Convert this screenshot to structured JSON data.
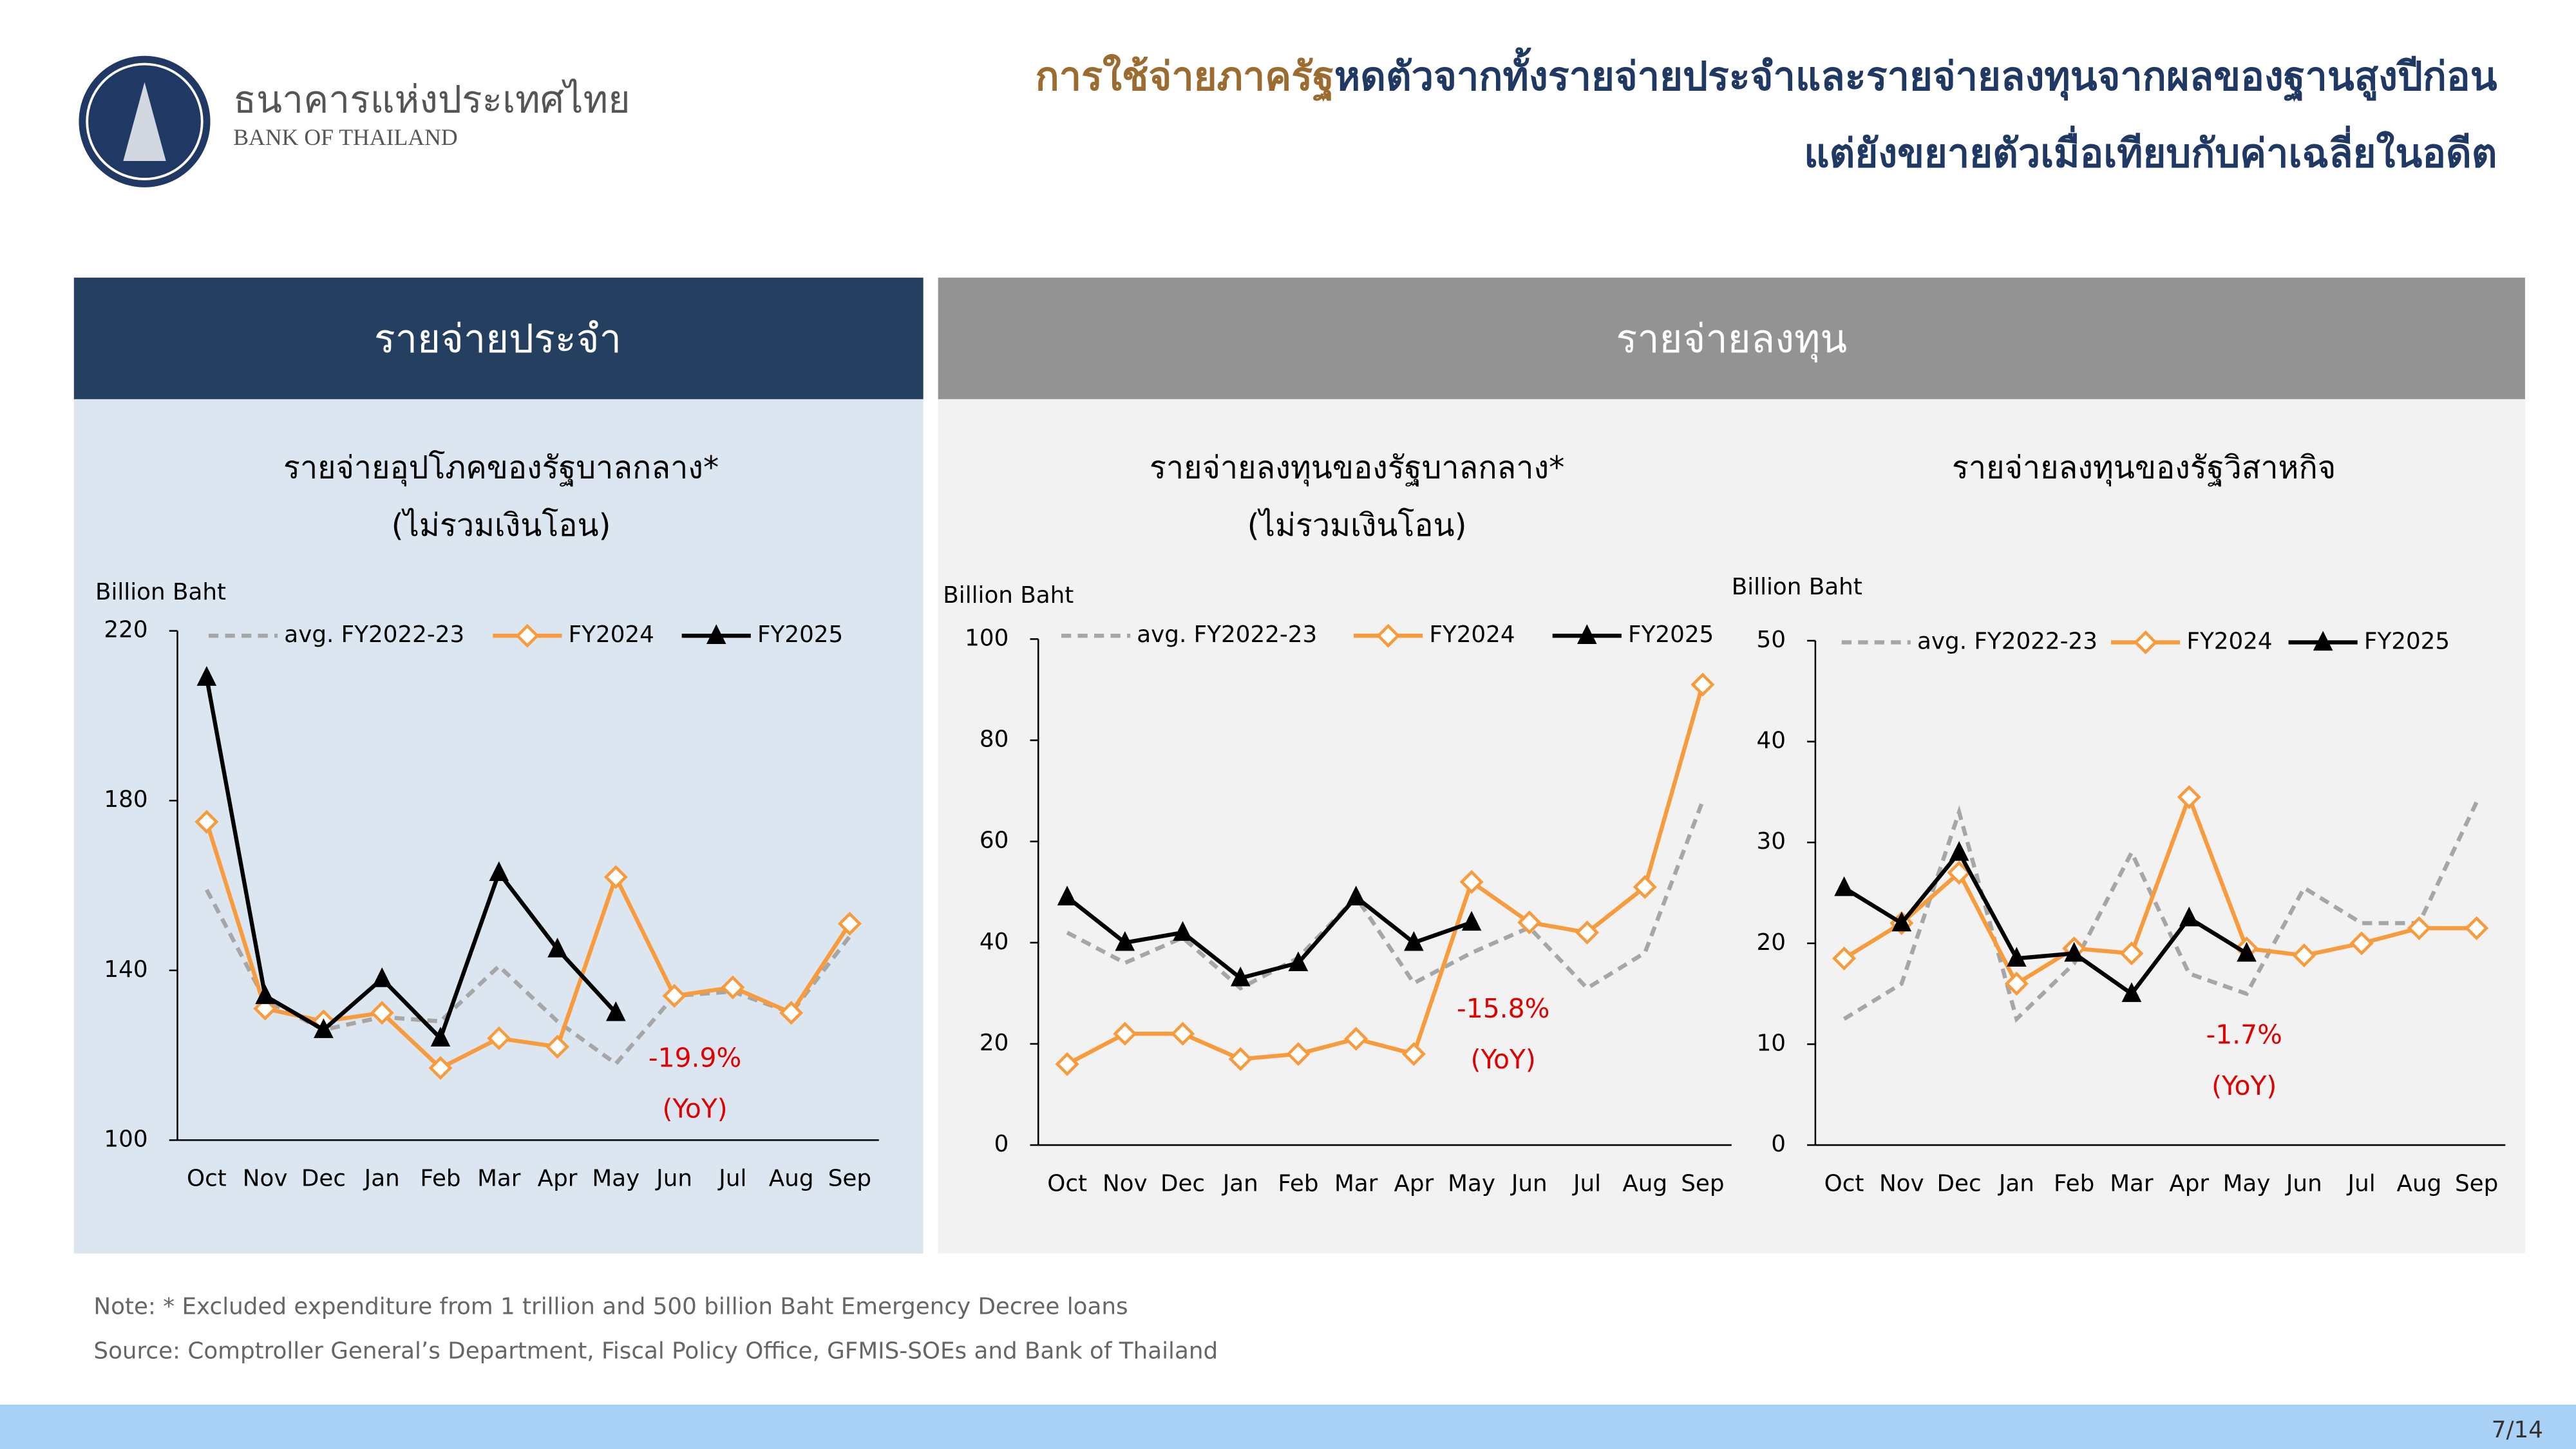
{
  "header": {
    "org_th": "ธนาคารแห่งประเทศไทย",
    "org_en": "BANK OF THAILAND",
    "headline_part1": "การใช้จ่ายภาครัฐ",
    "headline_part2": "หดตัวจากทั้งรายจ่ายประจำและรายจ่ายลงทุนจากผลของฐานสูงปีก่อน",
    "headline_line2": "แต่ยังขยายตัวเมื่อเทียบกับค่าเฉลี่ยในอดีต"
  },
  "sections": [
    "รายจ่ายประจำ",
    "รายจ่ายลงทุน"
  ],
  "chart_data": [
    {
      "type": "line",
      "title": "รายจ่ายอุปโภคของรัฐบาลกลาง*",
      "subtitle": "(ไม่รวมเงินโอน)",
      "y_label": "Billion Baht",
      "categories": [
        "Oct",
        "Nov",
        "Dec",
        "Jan",
        "Feb",
        "Mar",
        "Apr",
        "May",
        "Jun",
        "Jul",
        "Aug",
        "Sep"
      ],
      "ylim": [
        100,
        220
      ],
      "yticks": [
        100,
        140,
        180,
        220
      ],
      "series": [
        {
          "name": "avg. FY2022-23",
          "color": "#a6a6a6",
          "values": [
            159,
            133,
            126,
            129,
            128,
            141,
            128,
            118,
            134,
            135,
            130,
            148
          ]
        },
        {
          "name": "FY2024",
          "color": "#f79b3c",
          "values": [
            175,
            131,
            128,
            130,
            117,
            124,
            122,
            162,
            134,
            136,
            130,
            151
          ]
        },
        {
          "name": "FY2025",
          "color": "#000000",
          "values": [
            209,
            134,
            126,
            138,
            124,
            163,
            145,
            130,
            null,
            null,
            null,
            null
          ]
        }
      ],
      "annotations": [
        "-19.9%",
        "(YoY)"
      ]
    },
    {
      "type": "line",
      "title": "รายจ่ายลงทุนของรัฐบาลกลาง*",
      "subtitle": "(ไม่รวมเงินโอน)",
      "y_label": "Billion Baht",
      "categories": [
        "Oct",
        "Nov",
        "Dec",
        "Jan",
        "Feb",
        "Mar",
        "Apr",
        "May",
        "Jun",
        "Jul",
        "Aug",
        "Sep"
      ],
      "ylim": [
        0,
        100
      ],
      "yticks": [
        0,
        20,
        40,
        60,
        80,
        100
      ],
      "series": [
        {
          "name": "avg. FY2022-23",
          "color": "#a6a6a6",
          "values": [
            42,
            36,
            41,
            31,
            37,
            49,
            32,
            38,
            43,
            31,
            38,
            68
          ]
        },
        {
          "name": "FY2024",
          "color": "#f79b3c",
          "values": [
            16,
            22,
            22,
            17,
            18,
            21,
            18,
            52,
            44,
            42,
            51,
            91
          ]
        },
        {
          "name": "FY2025",
          "color": "#000000",
          "values": [
            49,
            40,
            42,
            33,
            36,
            49,
            40,
            44,
            null,
            null,
            null,
            null
          ]
        }
      ],
      "annotations": [
        "-15.8%",
        "(YoY)"
      ]
    },
    {
      "type": "line",
      "title": "รายจ่ายลงทุนของรัฐวิสาหกิจ",
      "y_label": "Billion Baht",
      "categories": [
        "Oct",
        "Nov",
        "Dec",
        "Jan",
        "Feb",
        "Mar",
        "Apr",
        "May",
        "Jun",
        "Jul",
        "Aug",
        "Sep"
      ],
      "ylim": [
        0,
        50
      ],
      "yticks": [
        0,
        10,
        20,
        30,
        40,
        50
      ],
      "series": [
        {
          "name": "avg. FY2022-23",
          "color": "#a6a6a6",
          "values": [
            12.5,
            16,
            33,
            12.5,
            18,
            29,
            17,
            15,
            25.5,
            22,
            22,
            34
          ]
        },
        {
          "name": "FY2024",
          "color": "#f79b3c",
          "values": [
            18.5,
            22,
            27,
            16,
            19.5,
            19,
            34.5,
            19.5,
            18.8,
            20,
            21.5,
            21.5
          ]
        },
        {
          "name": "FY2025",
          "color": "#000000",
          "values": [
            25.5,
            22,
            29,
            18.5,
            19,
            15,
            22.5,
            19,
            null,
            null,
            null,
            null
          ]
        }
      ],
      "annotations": [
        "-1.7%",
        "(YoY)"
      ]
    }
  ],
  "notes": [
    "Note: * Excluded expenditure from 1 trillion and 500 billion Baht Emergency Decree loans",
    "Source: Comptroller General’s Department, Fiscal Policy Office, GFMIS-SOEs and Bank of Thailand"
  ],
  "page_number": "7/14"
}
